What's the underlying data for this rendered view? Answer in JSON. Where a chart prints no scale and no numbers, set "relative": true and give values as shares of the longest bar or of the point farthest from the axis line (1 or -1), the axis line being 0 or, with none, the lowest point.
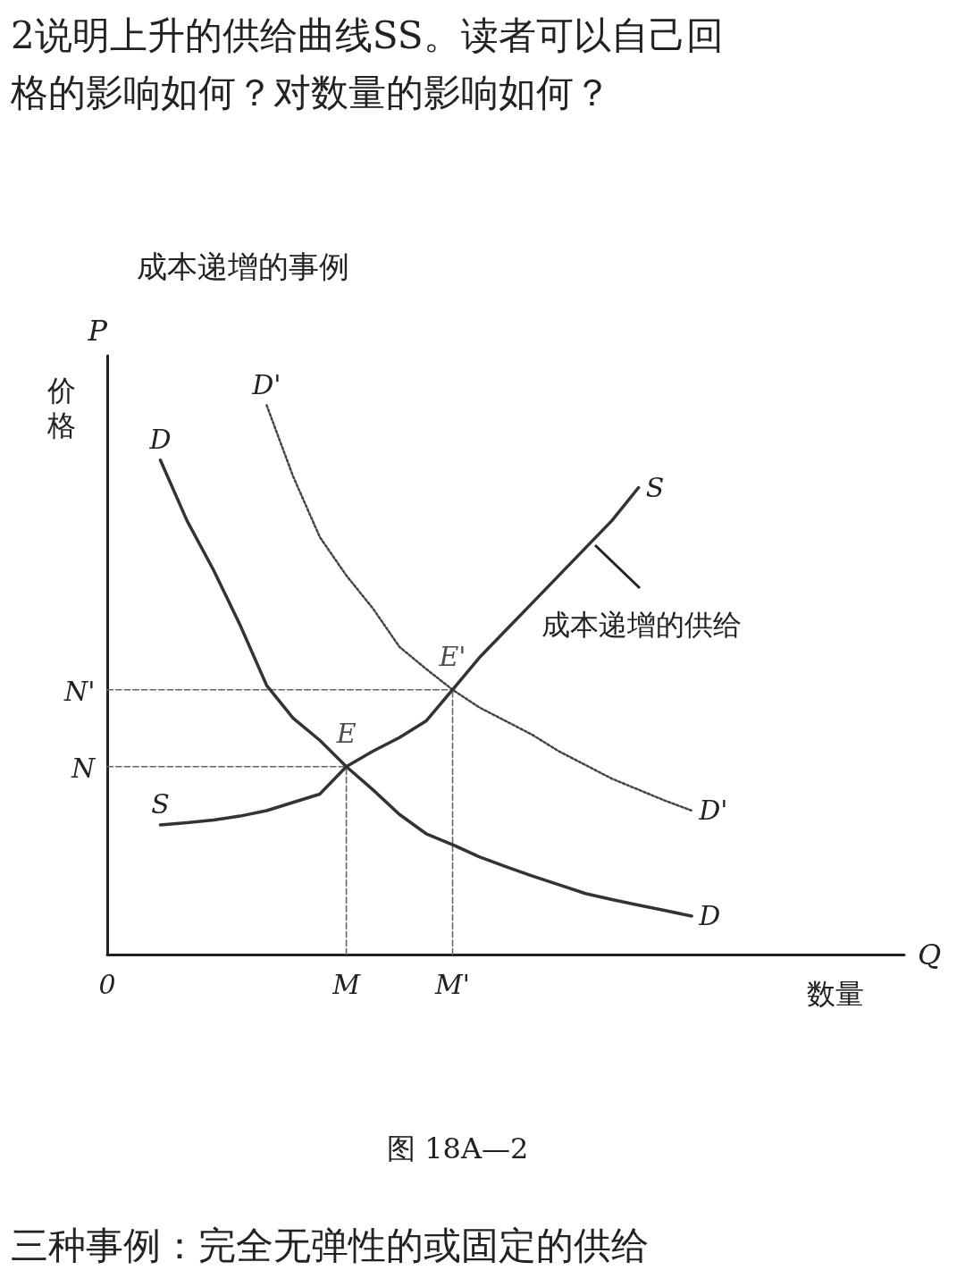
{
  "chart_data": {
    "type": "line",
    "title": "成本递增的事例",
    "xlabel": "Q",
    "ylabel": "P",
    "relative": true,
    "categories": [
      "0",
      null,
      null,
      null,
      null,
      null,
      null,
      null,
      null,
      "M",
      null,
      null,
      null,
      "M'",
      null,
      null,
      null,
      null,
      null,
      null,
      null,
      null,
      null,
      null,
      null,
      null,
      null,
      null,
      null,
      null,
      null
    ],
    "grid": false,
    "legend": false,
    "marker": "none",
    "series": [
      {
        "name": "D",
        "color": "#333333",
        "line_style": "solid",
        "values": [
          null,
          null,
          0.9,
          0.79,
          0.7,
          0.6,
          0.49,
          0.43,
          0.39,
          0.342,
          0.3,
          0.255,
          0.22,
          0.2,
          0.178,
          0.16,
          0.143,
          0.127,
          0.111,
          0.1,
          0.09,
          0.08,
          0.07,
          null,
          null,
          null,
          null,
          null,
          null,
          null,
          null
        ]
      },
      {
        "name": "D'",
        "color": "#444444",
        "line_style": "dotted",
        "values": [
          null,
          null,
          null,
          null,
          null,
          null,
          1,
          0.87,
          0.76,
          0.69,
          0.63,
          0.56,
          0.52,
          0.482,
          0.45,
          0.425,
          0.4,
          0.37,
          0.345,
          0.32,
          0.3,
          0.28,
          0.262,
          null,
          null,
          null,
          null,
          null,
          null,
          null,
          null
        ]
      },
      {
        "name": "S",
        "color": "#333333",
        "line_style": "solid",
        "values": [
          null,
          null,
          0.236,
          0.24,
          0.245,
          0.252,
          0.262,
          0.277,
          0.292,
          0.342,
          0.37,
          0.395,
          0.425,
          0.482,
          0.54,
          0.59,
          0.64,
          0.69,
          0.74,
          0.79,
          0.85,
          null,
          null,
          null,
          null,
          null,
          null,
          null,
          null,
          null,
          null
        ]
      },
      {
        "color": "#666666",
        "line_style": "dashed",
        "x": [
          "0",
          "M"
        ],
        "values": [
          0.342,
          0.342
        ]
      },
      {
        "color": "#666666",
        "line_style": "dashed",
        "x": [
          "0",
          "M'"
        ],
        "values": [
          0.482,
          0.482
        ]
      },
      {
        "color": "#666666",
        "line_style": "dashed",
        "x": [
          "M",
          "M"
        ],
        "values": [
          0,
          0.342
        ]
      },
      {
        "color": "#666666",
        "line_style": "dashed",
        "x": [
          "M'",
          "M'"
        ],
        "values": [
          0,
          0.482
        ]
      }
    ],
    "annotations": [
      {
        "text": "E",
        "x": "M",
        "y": 0.342
      },
      {
        "text": "E'",
        "x": "M'",
        "y": 0.482
      },
      "N",
      "N'",
      "成本递增的供给",
      "价格",
      "数量",
      "图 18A—2",
      "2说明上升的供给曲线SS。读者可以自己回",
      "格的影响如何？对数量的影响如何？",
      "三种事例：完全无弹性的或固定的供给"
    ]
  }
}
